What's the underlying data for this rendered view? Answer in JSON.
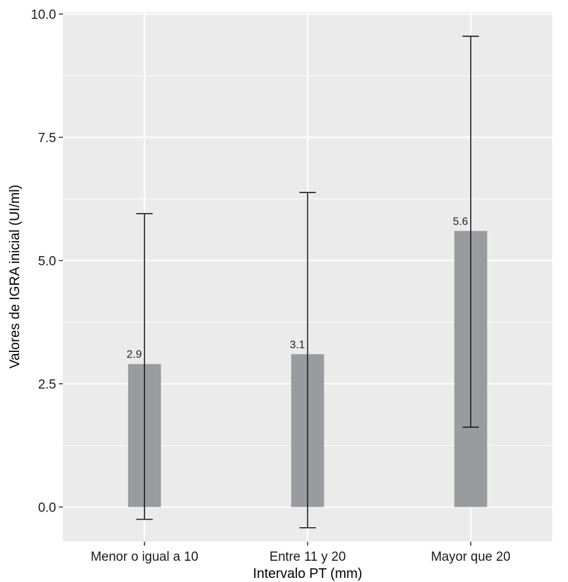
{
  "chart_data": {
    "type": "bar",
    "categories": [
      "Menor o igual a 10",
      "Entre 11 y 20",
      "Mayor que 20"
    ],
    "values": [
      2.9,
      3.1,
      5.6
    ],
    "data_labels": [
      "2.9",
      "3.1",
      "5.6"
    ],
    "error_bars": [
      {
        "low": -0.25,
        "high": 5.95
      },
      {
        "low": -0.42,
        "high": 6.38
      },
      {
        "low": 1.62,
        "high": 9.55
      }
    ],
    "xlabel": "Intervalo PT (mm)",
    "ylabel": "Valores de IGRA inicial (UI/ml)",
    "ylim": [
      -0.7,
      10.0
    ],
    "yticks": [
      0.0,
      2.5,
      5.0,
      7.5,
      10.0
    ],
    "ytick_labels": [
      "0.0",
      "2.5",
      "5.0",
      "7.5",
      "10.0"
    ],
    "grid": true,
    "colors": {
      "panel": "#ebebeb",
      "grid": "#ffffff",
      "bar": "#9a9b9f",
      "error_bar": "#1a1a1a"
    }
  }
}
